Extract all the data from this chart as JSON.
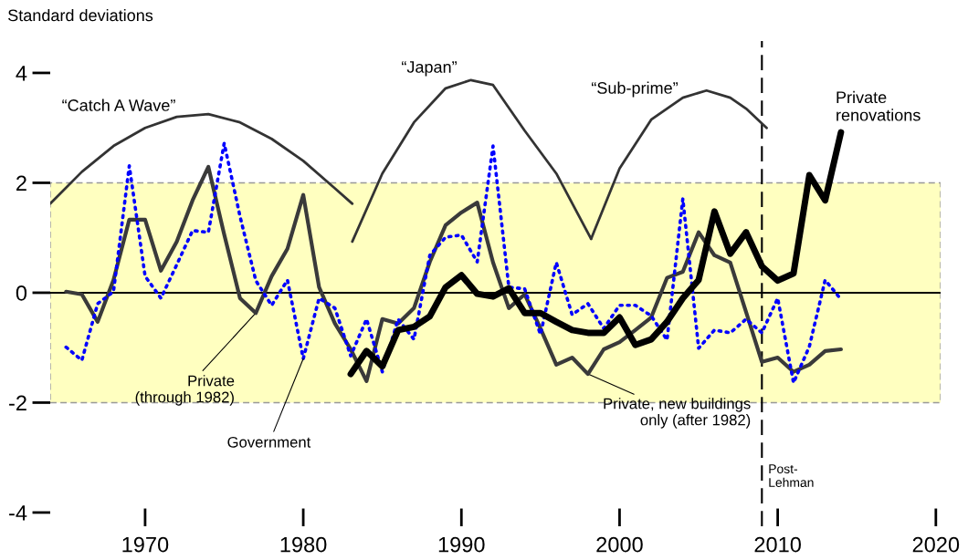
{
  "chart_data": {
    "type": "line",
    "ylabel": "Standard deviations",
    "xlim": [
      1964,
      2020.3
    ],
    "ylim": [
      -4.25,
      4.58
    ],
    "xticks": [
      1970,
      1980,
      1990,
      2000,
      2010,
      2020
    ],
    "yticks": [
      -4,
      -2,
      0,
      2,
      4
    ],
    "grid": false,
    "legend": false,
    "line_style": "solid",
    "annotations": [
      {
        "text": "Private\n(through 1982)",
        "x": 1977,
        "y": -0.37
      },
      {
        "text": "Private, new buildings\nonly (after 1982)",
        "x": 1998,
        "y": -1.48
      }
    ],
    "bands": [
      {
        "axis": "y",
        "from": -2,
        "to": 2,
        "color": "#ffffc0"
      }
    ],
    "ref_lines": [
      {
        "axis": "y",
        "value": 0,
        "color": "#000000",
        "line_style": "solid"
      },
      {
        "axis": "x",
        "value": 2009,
        "label": "Post-\nLehman",
        "color": "#000000",
        "line_style": "dashed"
      }
    ],
    "series": [
      {
        "color": "#3a3a3a",
        "x": [
          1965,
          1966,
          1967,
          1968,
          1969,
          1970,
          1971,
          1972,
          1973,
          1974,
          1975,
          1976,
          1977,
          1978,
          1979,
          1980,
          1981,
          1982,
          1983,
          1984,
          1985,
          1986,
          1987,
          1988,
          1989,
          1990,
          1991,
          1992,
          1993,
          1994,
          1995,
          1996,
          1997,
          1998,
          1999,
          2000,
          2001,
          2002,
          2003,
          2004,
          2005,
          2006,
          2007,
          2008,
          2009,
          2010,
          2011,
          2012,
          2013,
          2014
        ],
        "values": [
          0.02,
          -0.03,
          -0.53,
          0.23,
          1.33,
          1.33,
          0.4,
          0.93,
          1.68,
          2.29,
          1.06,
          -0.1,
          -0.37,
          0.3,
          0.8,
          1.78,
          0.1,
          -0.56,
          -1.03,
          -1.61,
          -0.48,
          -0.56,
          -0.28,
          0.56,
          1.23,
          1.46,
          1.64,
          0.55,
          -0.28,
          -0.03,
          -0.65,
          -1.31,
          -1.18,
          -1.48,
          -1.03,
          -0.9,
          -0.68,
          -0.45,
          0.27,
          0.38,
          1.1,
          0.68,
          0.55,
          -0.35,
          -1.26,
          -1.18,
          -1.44,
          -1.31,
          -1.06,
          -1.03
        ]
      },
      {
        "name": "Government",
        "color": "#0000ff",
        "line_style": "dotted",
        "x": [
          1965,
          1966,
          1967,
          1968,
          1969,
          1970,
          1971,
          1972,
          1973,
          1974,
          1975,
          1976,
          1977,
          1978,
          1979,
          1980,
          1981,
          1982,
          1983,
          1984,
          1985,
          1986,
          1987,
          1988,
          1989,
          1990,
          1991,
          1992,
          1993,
          1994,
          1995,
          1996,
          1997,
          1998,
          1999,
          2000,
          2001,
          2002,
          2003,
          2004,
          2005,
          2006,
          2007,
          2008,
          2009,
          2010,
          2011,
          2012,
          2013,
          2014
        ],
        "values": [
          -0.99,
          -1.23,
          -0.2,
          0.02,
          2.31,
          0.3,
          -0.1,
          0.51,
          1.13,
          1.1,
          2.72,
          1.39,
          0.22,
          -0.23,
          0.23,
          -1.2,
          -0.1,
          -0.28,
          -1.15,
          -0.48,
          -1.44,
          -0.48,
          -0.85,
          0.68,
          1.01,
          1.05,
          0.56,
          2.67,
          0.1,
          0.07,
          -0.76,
          0.55,
          -0.4,
          -0.2,
          -0.65,
          -0.23,
          -0.23,
          -0.42,
          -0.86,
          1.71,
          -1.01,
          -0.68,
          -0.73,
          -0.48,
          -0.73,
          -0.1,
          -1.64,
          -0.98,
          0.23,
          -0.12
        ]
      },
      {
        "name": "Private\nrenovations",
        "color": "#000000",
        "x": [
          1983,
          1984,
          1985,
          1986,
          1987,
          1988,
          1989,
          1990,
          1991,
          1992,
          1993,
          1994,
          1995,
          1996,
          1997,
          1998,
          1999,
          2000,
          2001,
          2002,
          2003,
          2004,
          2005,
          2006,
          2007,
          2008,
          2009,
          2010,
          2011,
          2012,
          2013,
          2014
        ],
        "values": [
          -1.48,
          -1.06,
          -1.34,
          -0.68,
          -0.62,
          -0.43,
          0.1,
          0.32,
          -0.02,
          -0.07,
          0.08,
          -0.37,
          -0.37,
          -0.53,
          -0.68,
          -0.73,
          -0.73,
          -0.45,
          -0.95,
          -0.85,
          -0.53,
          -0.1,
          0.23,
          1.48,
          0.71,
          1.1,
          0.48,
          0.22,
          0.35,
          2.14,
          1.68,
          2.92
        ]
      },
      {
        "name": "“Catch A Wave”",
        "color": "#333333",
        "x": [
          1964,
          1966,
          1968,
          1970,
          1972,
          1974,
          1976,
          1978,
          1980,
          1982,
          1983.1
        ],
        "values": [
          1.62,
          2.2,
          2.67,
          3.0,
          3.2,
          3.25,
          3.1,
          2.8,
          2.4,
          1.9,
          1.62
        ]
      },
      {
        "name": "“Japan”",
        "color": "#333333",
        "x": [
          1983.1,
          1985,
          1987,
          1989,
          1990.6,
          1992,
          1994,
          1996,
          1998.2
        ],
        "values": [
          0.93,
          2.17,
          3.1,
          3.72,
          3.87,
          3.78,
          2.95,
          2.17,
          0.98
        ]
      },
      {
        "name": "“Sub-prime”",
        "color": "#333333",
        "x": [
          1998.2,
          2000,
          2002,
          2004,
          2005.5,
          2007,
          2008,
          2009.3
        ],
        "values": [
          0.98,
          2.26,
          3.15,
          3.55,
          3.68,
          3.55,
          3.35,
          3.0
        ]
      }
    ]
  }
}
